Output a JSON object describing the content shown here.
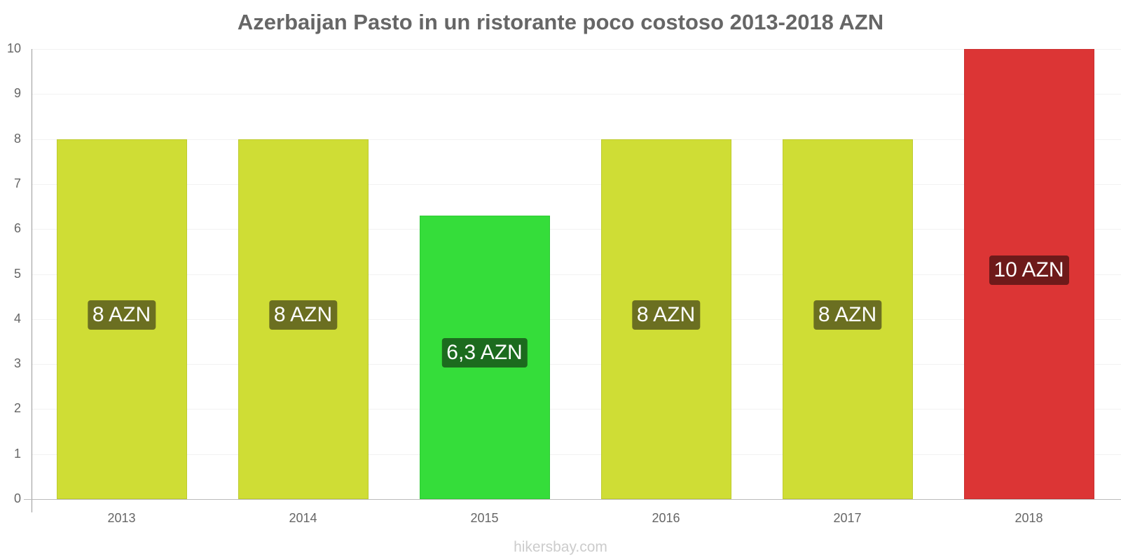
{
  "chart_data": {
    "type": "bar",
    "title": "Azerbaijan Pasto in un ristorante poco costoso 2013-2018 AZN",
    "categories": [
      "2013",
      "2014",
      "2015",
      "2016",
      "2017",
      "2018"
    ],
    "values": [
      8,
      8,
      6.3,
      8,
      8,
      10
    ],
    "data_labels": [
      "8 AZN",
      "8 AZN",
      "6,3 AZN",
      "8 AZN",
      "8 AZN",
      "10 AZN"
    ],
    "bar_colors": [
      "#cfdd35",
      "#cfdd35",
      "#35dd3a",
      "#cfdd35",
      "#cfdd35",
      "#dc3535"
    ],
    "label_colors": [
      "#6b6f21",
      "#6b6f21",
      "#1c6b1e",
      "#6b6f21",
      "#6b6f21",
      "#6e1a1a"
    ],
    "xlabel": "",
    "ylabel": "",
    "ylim": [
      0,
      10
    ],
    "yticks": [
      "0",
      "1",
      "2",
      "3",
      "4",
      "5",
      "6",
      "7",
      "8",
      "9",
      "10"
    ],
    "grid": true,
    "legend": null
  },
  "credit": "hikersbay.com"
}
